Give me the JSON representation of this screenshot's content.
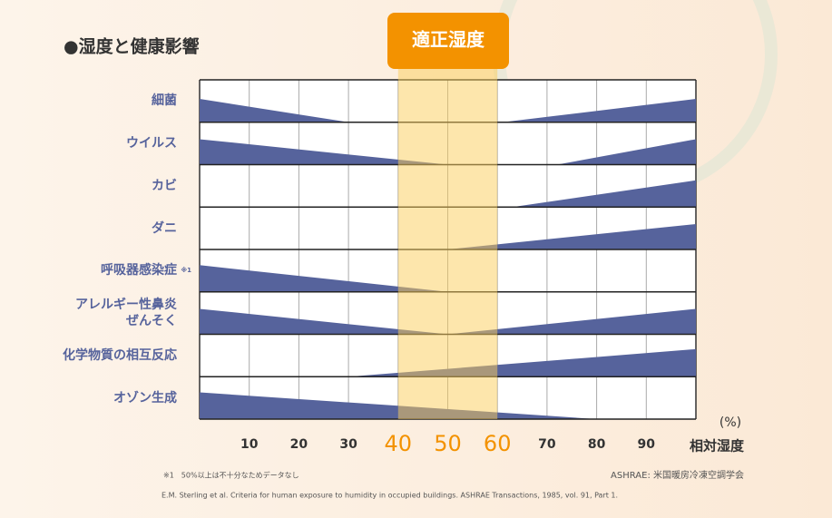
{
  "chart_data": {
    "type": "wedge",
    "title": "●湿度と健康影響",
    "optimal_label": "適正湿度",
    "optimal_range": [
      40,
      60
    ],
    "categories": [
      "細菌",
      "ウイルス",
      "カビ",
      "ダニ",
      "呼吸器感染症",
      "アレルギー性鼻炎\nぜんそく",
      "化学物質の相互反応",
      "オゾン生成"
    ],
    "category_note": {
      "index": 4,
      "mark": "※1"
    },
    "low_side_end": [
      30,
      50,
      null,
      null,
      50,
      50,
      null,
      80
    ],
    "low_side_height": [
      0.55,
      0.6,
      null,
      null,
      0.63,
      0.6,
      null,
      0.63
    ],
    "high_side_start": [
      61,
      72,
      63,
      50,
      null,
      50,
      30,
      null
    ],
    "high_side_height": [
      0.55,
      0.6,
      0.63,
      0.6,
      null,
      0.6,
      0.65,
      null
    ],
    "color": "#56639c",
    "xlim": [
      0,
      100
    ],
    "xticks": [
      10,
      20,
      30,
      40,
      50,
      60,
      70,
      80,
      90
    ],
    "x_unit": "(%)",
    "x_label": "相対湿度",
    "footnote": "※1　50%以上は不十分なためデータなし",
    "source_org": "ASHRAE: 米国暖房冷凍空調学会",
    "citation": "E.M. Sterling et al. Criteria for human exposure to humidity in occupied buildings. ASHRAE Transactions, 1985, vol. 91, Part 1."
  }
}
